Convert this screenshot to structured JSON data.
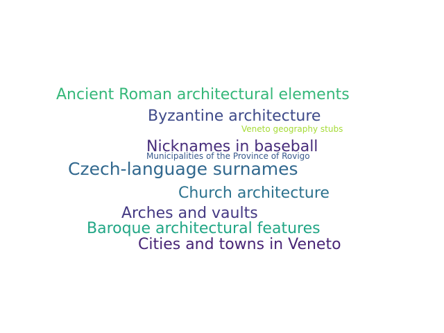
{
  "words": [
    {
      "text": "Ancient Roman architectural elements",
      "color": "#35b779"
    },
    {
      "text": "Byzantine architecture",
      "color": "#3e4a89"
    },
    {
      "text": "Veneto geography stubs",
      "color": "#a5db36"
    },
    {
      "text": "Nicknames in baseball",
      "color": "#472d7b"
    },
    {
      "text": "Municipalities of the Province of Rovigo",
      "color": "#38598c"
    },
    {
      "text": "Czech-language surnames",
      "color": "#31688e"
    },
    {
      "text": "Church architecture",
      "color": "#2c728e"
    },
    {
      "text": "Arches and vaults",
      "color": "#443983"
    },
    {
      "text": "Baroque architectural features",
      "color": "#21a685"
    },
    {
      "text": "Cities and towns in Veneto",
      "color": "#482475"
    }
  ]
}
